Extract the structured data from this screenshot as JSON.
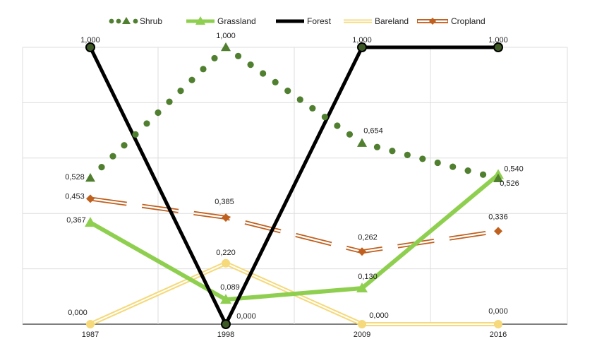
{
  "chart_data": {
    "type": "line",
    "categories": [
      "1987",
      "1998",
      "2009",
      "2016"
    ],
    "ylim": [
      0,
      1
    ],
    "grid": true,
    "legend_position": "top",
    "series": [
      {
        "name": "Shrub",
        "values": [
          0.528,
          1.0,
          0.654,
          0.526
        ],
        "labels": [
          "0,528",
          "1,000",
          "0,654",
          "0,526"
        ],
        "color": "#4f7f2f",
        "style": "dotted",
        "marker": "triangle"
      },
      {
        "name": "Grassland",
        "values": [
          0.367,
          0.089,
          0.13,
          0.54
        ],
        "labels": [
          "0,367",
          "0,089",
          "0,130",
          "0,540"
        ],
        "color": "#8fcf4f",
        "style": "solid",
        "marker": "triangle"
      },
      {
        "name": "Forest",
        "values": [
          1.0,
          0.0,
          1.0,
          1.0
        ],
        "labels": [
          "1,000",
          "0,000",
          "1,000",
          "1,000"
        ],
        "color": "#000000",
        "style": "solid",
        "marker": "circle"
      },
      {
        "name": "Bareland",
        "values": [
          0.0,
          0.22,
          0.0,
          0.0
        ],
        "labels": [
          "0,000",
          "0,220",
          "0,000",
          "0,000"
        ],
        "color": "#f5d97a",
        "style": "double",
        "marker": "circle"
      },
      {
        "name": "Cropland",
        "values": [
          0.453,
          0.385,
          0.262,
          0.336
        ],
        "labels": [
          "0,453",
          "0,385",
          "0,262",
          "0,336"
        ],
        "color": "#c0601e",
        "style": "dashed-double",
        "marker": "diamond"
      }
    ]
  }
}
